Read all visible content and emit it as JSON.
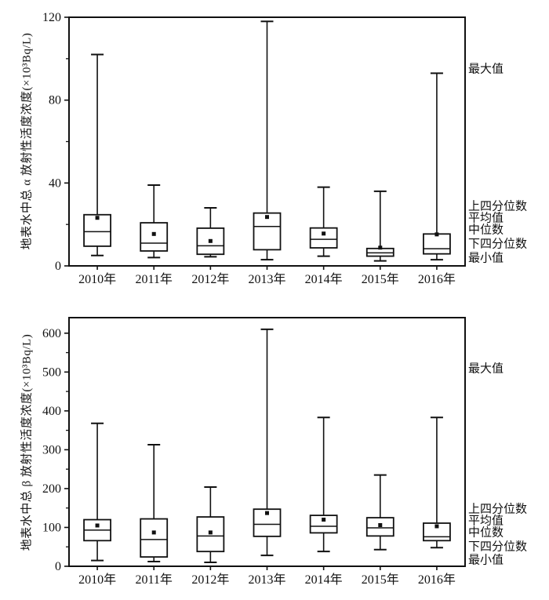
{
  "figure": {
    "description_labels": {
      "max": "最大值",
      "upper_quartile": "上四分位数",
      "mean": "平均值",
      "median": "中位数",
      "lower_quartile": "下四分位数",
      "min": "最小值"
    }
  },
  "chart_data": [
    {
      "type": "box",
      "title": "",
      "xlabel": "",
      "ylabel": "地表水中总 α 放射性活度浓度(×10³Bq/L)",
      "ylim": [
        0,
        120
      ],
      "ytick_labels": [
        "0",
        "40",
        "80",
        "120"
      ],
      "ymajor_step": 40,
      "yminor_step": 20,
      "grid": false,
      "legend_position": "right-annotations",
      "categories": [
        "2010年",
        "2011年",
        "2012年",
        "2013年",
        "2014年",
        "2015年",
        "2016年"
      ],
      "series": [
        {
          "category": "2010年",
          "min": 5,
          "q1": 9.5,
          "median": 16.5,
          "mean": 23.2,
          "q3": 24.7,
          "max": 102
        },
        {
          "category": "2011年",
          "min": 4,
          "q1": 7.2,
          "median": 11,
          "mean": 15.4,
          "q3": 20.8,
          "max": 39
        },
        {
          "category": "2012年",
          "min": 4.4,
          "q1": 5.6,
          "median": 9.7,
          "mean": 12,
          "q3": 18.2,
          "max": 28
        },
        {
          "category": "2013年",
          "min": 3,
          "q1": 7.8,
          "median": 19,
          "mean": 23.6,
          "q3": 25.5,
          "max": 118
        },
        {
          "category": "2014年",
          "min": 4.7,
          "q1": 8.7,
          "median": 12.8,
          "mean": 15.6,
          "q3": 18.3,
          "max": 38
        },
        {
          "category": "2015年",
          "min": 2.4,
          "q1": 4.7,
          "median": 6.3,
          "mean": 8.8,
          "q3": 8.4,
          "max": 36
        },
        {
          "category": "2016年",
          "min": 3,
          "q1": 5.8,
          "median": 8.3,
          "mean": 15.2,
          "q3": 15.4,
          "max": 93
        }
      ],
      "annotations": [
        "最大值",
        "上四分位数",
        "平均值",
        "中位数",
        "下四分位数",
        "最小值"
      ]
    },
    {
      "type": "box",
      "title": "",
      "xlabel": "",
      "ylabel": "地表水中总 β 放射性活度浓度(×10³Bq/L)",
      "ylim": [
        0,
        600
      ],
      "ytick_labels": [
        "0",
        "100",
        "200",
        "300",
        "400",
        "500",
        "600"
      ],
      "ymajor_step": 100,
      "yminor_step": 50,
      "grid": false,
      "legend_position": "right-annotations",
      "categories": [
        "2010年",
        "2011年",
        "2012年",
        "2013年",
        "2014年",
        "2015年",
        "2016年"
      ],
      "series": [
        {
          "category": "2010年",
          "min": 15,
          "q1": 66,
          "median": 93,
          "mean": 105,
          "q3": 120,
          "max": 368
        },
        {
          "category": "2011年",
          "min": 12,
          "q1": 24,
          "median": 69,
          "mean": 87,
          "q3": 122,
          "max": 313
        },
        {
          "category": "2012年",
          "min": 10,
          "q1": 38,
          "median": 78,
          "mean": 87,
          "q3": 127,
          "max": 204
        },
        {
          "category": "2013年",
          "min": 28,
          "q1": 77,
          "median": 108,
          "mean": 137,
          "q3": 147,
          "max": 610
        },
        {
          "category": "2014年",
          "min": 38,
          "q1": 86,
          "median": 103,
          "mean": 120,
          "q3": 131,
          "max": 383
        },
        {
          "category": "2015年",
          "min": 43,
          "q1": 78,
          "median": 99,
          "mean": 106,
          "q3": 125,
          "max": 235
        },
        {
          "category": "2016年",
          "min": 48,
          "q1": 66,
          "median": 76,
          "mean": 103,
          "q3": 111,
          "max": 383
        }
      ],
      "annotations": [
        "最大值",
        "上四分位数",
        "平均值",
        "中位数",
        "下四分位数",
        "最小值"
      ]
    }
  ]
}
